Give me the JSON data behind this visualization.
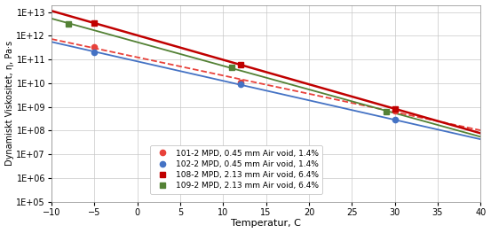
{
  "series": [
    {
      "label": "101-2 MPD, 0.45 mm Air void, 1.4%",
      "x": [
        -5,
        12,
        30
      ],
      "y": [
        350000000000.0,
        11000000000.0,
        700000000.0
      ],
      "color": "#e8413a",
      "linestyle": "--",
      "marker": "o",
      "linewidth": 1.3,
      "markersize": 4.5
    },
    {
      "label": "102-2 MPD, 0.45 mm Air void, 1.4%",
      "x": [
        -5,
        12,
        30
      ],
      "y": [
        210000000000.0,
        9000000000.0,
        280000000.0
      ],
      "color": "#4472c4",
      "linestyle": "-",
      "marker": "o",
      "linewidth": 1.3,
      "markersize": 4.5
    },
    {
      "label": "108-2 MPD, 2.13 mm Air void, 6.4%",
      "x": [
        -5,
        12,
        30
      ],
      "y": [
        3500000000000.0,
        58000000000.0,
        850000000.0
      ],
      "color": "#c00000",
      "linestyle": "-",
      "marker": "s",
      "linewidth": 1.8,
      "markersize": 5.0
    },
    {
      "label": "109-2 MPD, 2.13 mm Air void, 6.4%",
      "x": [
        -8,
        11,
        29
      ],
      "y": [
        3200000000000.0,
        48000000000.0,
        650000000.0
      ],
      "color": "#538135",
      "linestyle": "-",
      "marker": "s",
      "linewidth": 1.3,
      "markersize": 4.5
    }
  ],
  "xlabel": "Temperatur, C",
  "ylabel": "Dynamiskt Viskositet, η, Pa·s",
  "xlim": [
    -10,
    40
  ],
  "ylim_log": [
    100000.0,
    20000000000000.0
  ],
  "xticks": [
    -10,
    -5,
    0,
    5,
    10,
    15,
    20,
    25,
    30,
    35,
    40
  ],
  "ytick_vals": [
    100000.0,
    1000000.0,
    10000000.0,
    100000000.0,
    1000000000.0,
    10000000000.0,
    100000000000.0,
    1000000000000.0,
    10000000000000.0
  ],
  "ytick_labels": [
    "1E+05",
    "1E+06",
    "1E+07",
    "1E+08",
    "1E+09",
    "1E+10",
    "1E+11",
    "1E+12",
    "1E+13"
  ],
  "background_color": "#ffffff",
  "grid_color": "#c8c8c8"
}
